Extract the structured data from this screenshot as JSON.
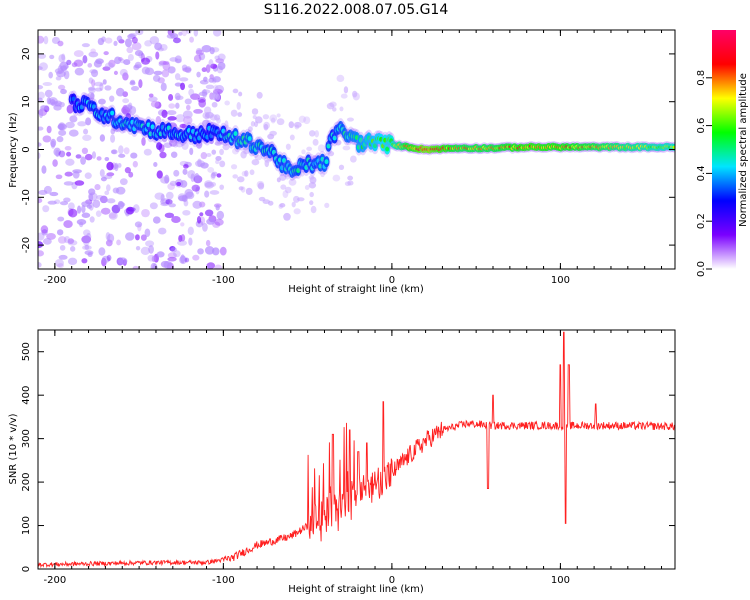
{
  "figure": {
    "title": "S116.2022.008.07.05.G14"
  },
  "chart_data": [
    {
      "type": "heatmap",
      "name": "spectrogram",
      "xlabel": "Height of straight line (km)",
      "ylabel": "Frequency (Hz)",
      "xlim": [
        -210,
        168
      ],
      "ylim": [
        -25,
        25
      ],
      "xticks": [
        -200,
        -100,
        0,
        100
      ],
      "yticks": [
        -20,
        -10,
        0,
        10,
        20
      ],
      "colorbar": {
        "label": "Normalized spectral amplitude",
        "range": [
          0.0,
          1.0
        ],
        "ticks": [
          0.0,
          0.2,
          0.4,
          0.6,
          0.8
        ],
        "tick_labels": [
          "0.0",
          "0.2",
          "0.4",
          "0.6",
          "0.8"
        ],
        "colormap": [
          "#ffffff",
          "#7a00ff",
          "#0000ff",
          "#00e5ff",
          "#00ff00",
          "#ffff00",
          "#ff0000",
          "#ff0066"
        ]
      },
      "ridge": [
        {
          "x": -190,
          "y": 10,
          "a": 0.35
        },
        {
          "x": -180,
          "y": 9,
          "a": 0.4
        },
        {
          "x": -170,
          "y": 7,
          "a": 0.4
        },
        {
          "x": -160,
          "y": 6,
          "a": 0.42
        },
        {
          "x": -150,
          "y": 5,
          "a": 0.42
        },
        {
          "x": -140,
          "y": 4,
          "a": 0.4
        },
        {
          "x": -130,
          "y": 3.5,
          "a": 0.4
        },
        {
          "x": -120,
          "y": 3,
          "a": 0.4
        },
        {
          "x": -110,
          "y": 3.5,
          "a": 0.38
        },
        {
          "x": -100,
          "y": 3,
          "a": 0.4
        },
        {
          "x": -90,
          "y": 2,
          "a": 0.45
        },
        {
          "x": -80,
          "y": 1,
          "a": 0.45
        },
        {
          "x": -70,
          "y": -1,
          "a": 0.42
        },
        {
          "x": -60,
          "y": -5,
          "a": 0.45
        },
        {
          "x": -50,
          "y": -3,
          "a": 0.42
        },
        {
          "x": -40,
          "y": -3,
          "a": 0.45
        },
        {
          "x": -35,
          "y": 3,
          "a": 0.4
        },
        {
          "x": -30,
          "y": 4,
          "a": 0.45
        },
        {
          "x": -20,
          "y": 1.5,
          "a": 0.5
        },
        {
          "x": -10,
          "y": 1.5,
          "a": 0.55
        },
        {
          "x": 0,
          "y": 1,
          "a": 0.6
        },
        {
          "x": 10,
          "y": 0.5,
          "a": 0.75
        },
        {
          "x": 20,
          "y": 0,
          "a": 0.85
        },
        {
          "x": 40,
          "y": 0.3,
          "a": 0.72
        },
        {
          "x": 60,
          "y": 0.3,
          "a": 0.72
        },
        {
          "x": 80,
          "y": 0.5,
          "a": 0.78
        },
        {
          "x": 100,
          "y": 0.5,
          "a": 0.76
        },
        {
          "x": 120,
          "y": 0.5,
          "a": 0.72
        },
        {
          "x": 140,
          "y": 0.5,
          "a": 0.66
        },
        {
          "x": 160,
          "y": 0.5,
          "a": 0.62
        }
      ]
    },
    {
      "type": "line",
      "name": "snr",
      "xlabel": "Height of straight line (km)",
      "ylabel": "SNR (10 * v/v)",
      "xlim": [
        -210,
        168
      ],
      "ylim": [
        0,
        550
      ],
      "xticks": [
        -200,
        -100,
        0,
        100
      ],
      "yticks": [
        0,
        100,
        200,
        300,
        400,
        500
      ],
      "color": "#ff2020",
      "baseline": [
        {
          "x": -210,
          "y": 10
        },
        {
          "x": -140,
          "y": 15
        },
        {
          "x": -110,
          "y": 15
        },
        {
          "x": -95,
          "y": 25
        },
        {
          "x": -80,
          "y": 55
        },
        {
          "x": -60,
          "y": 75
        },
        {
          "x": -45,
          "y": 110
        },
        {
          "x": -35,
          "y": 140
        },
        {
          "x": -20,
          "y": 175
        },
        {
          "x": -10,
          "y": 195
        },
        {
          "x": 0,
          "y": 220
        },
        {
          "x": 10,
          "y": 260
        },
        {
          "x": 20,
          "y": 295
        },
        {
          "x": 30,
          "y": 320
        },
        {
          "x": 45,
          "y": 335
        },
        {
          "x": 60,
          "y": 330
        },
        {
          "x": 90,
          "y": 330
        },
        {
          "x": 130,
          "y": 330
        },
        {
          "x": 168,
          "y": 328
        }
      ],
      "spikes": [
        {
          "x": -35,
          "y": 310
        },
        {
          "x": -25,
          "y": 320
        },
        {
          "x": -20,
          "y": 270
        },
        {
          "x": -15,
          "y": 290
        },
        {
          "x": -5,
          "y": 385
        },
        {
          "x": 57,
          "y": 425
        },
        {
          "x": 57,
          "y": 185
        },
        {
          "x": 60,
          "y": 400
        },
        {
          "x": 100,
          "y": 470
        },
        {
          "x": 102,
          "y": 545
        },
        {
          "x": 103,
          "y": 105
        },
        {
          "x": 105,
          "y": 470
        },
        {
          "x": 121,
          "y": 380
        }
      ]
    }
  ]
}
